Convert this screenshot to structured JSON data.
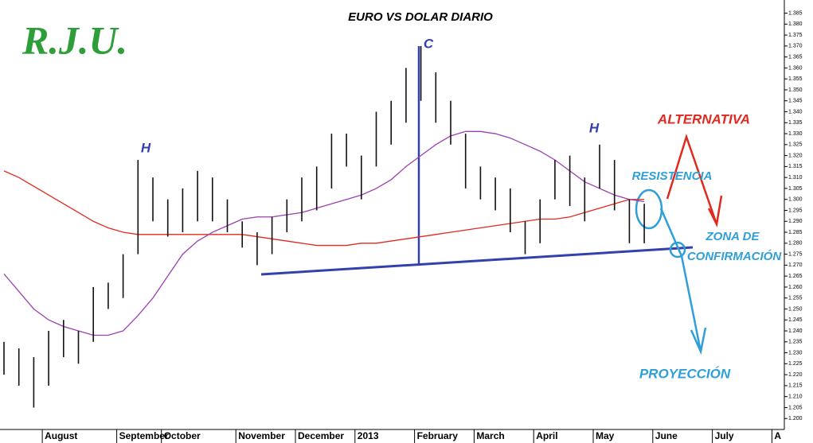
{
  "chart_data": {
    "type": "ohlc",
    "title": "EURO VS DOLAR DIARIO",
    "logo": "R.J.U.",
    "annotations": {
      "h_left": "H",
      "c": "C",
      "h_right": "H",
      "alternativa": "ALTERNATIVA",
      "resistencia": "RESISTENCIA",
      "zona_1": "ZONA DE",
      "zona_2": "CONFIRMACIÓN",
      "proyeccion": "PROYECCIÓN"
    },
    "categories": [
      null,
      null,
      null,
      "August",
      null,
      null,
      null,
      null,
      "September",
      null,
      null,
      "October",
      null,
      null,
      null,
      null,
      "November",
      null,
      null,
      null,
      "December",
      null,
      null,
      null,
      "2013",
      null,
      null,
      null,
      "February",
      null,
      null,
      null,
      "March",
      null,
      null,
      null,
      "April",
      null,
      null,
      null,
      "May",
      null,
      null,
      null,
      "June",
      null,
      null,
      null,
      "July",
      null,
      null,
      null,
      "A"
    ],
    "high": [
      1.235,
      1.232,
      1.228,
      1.24,
      1.245,
      1.24,
      1.26,
      1.262,
      1.275,
      1.318,
      1.31,
      1.3,
      1.305,
      1.313,
      1.31,
      1.3,
      1.29,
      1.285,
      1.292,
      1.3,
      1.31,
      1.315,
      1.33,
      1.33,
      1.32,
      1.34,
      1.345,
      1.36,
      1.37,
      1.358,
      1.345,
      1.33,
      1.315,
      1.31,
      1.305,
      1.29,
      1.3,
      1.318,
      1.32,
      1.31,
      1.325,
      1.318,
      1.3,
      1.298,
      null,
      null,
      null,
      null,
      null,
      null,
      null,
      null,
      null
    ],
    "low": [
      1.22,
      1.215,
      1.205,
      1.215,
      1.228,
      1.225,
      1.235,
      1.25,
      1.255,
      1.275,
      1.29,
      1.283,
      1.285,
      1.29,
      1.29,
      1.285,
      1.278,
      1.27,
      1.275,
      1.285,
      1.29,
      1.295,
      1.305,
      1.315,
      1.3,
      1.315,
      1.325,
      1.335,
      1.345,
      1.335,
      1.325,
      1.305,
      1.3,
      1.295,
      1.285,
      1.275,
      1.28,
      1.3,
      1.297,
      1.29,
      1.305,
      1.295,
      1.28,
      1.28,
      null,
      null,
      null,
      null,
      null,
      null,
      null,
      null,
      null
    ],
    "color": "#111111",
    "lines": [
      {
        "color": "#e02a1f",
        "values": [
          1.313,
          1.31,
          1.306,
          1.302,
          1.298,
          1.294,
          1.29,
          1.287,
          1.285,
          1.284,
          1.284,
          1.284,
          1.284,
          1.284,
          1.284,
          1.284,
          1.284,
          1.283,
          1.282,
          1.281,
          1.28,
          1.279,
          1.279,
          1.279,
          1.28,
          1.28,
          1.281,
          1.282,
          1.283,
          1.284,
          1.285,
          1.286,
          1.287,
          1.288,
          1.289,
          1.29,
          1.291,
          1.291,
          1.292,
          1.294,
          1.296,
          1.298,
          1.3,
          1.3,
          null,
          null,
          null,
          null,
          null,
          null,
          null,
          null,
          null
        ]
      },
      {
        "color": "#9b3fb0",
        "values": [
          1.266,
          1.258,
          1.25,
          1.245,
          1.242,
          1.24,
          1.238,
          1.238,
          1.24,
          1.247,
          1.255,
          1.265,
          1.275,
          1.281,
          1.285,
          1.288,
          1.291,
          1.292,
          1.292,
          1.293,
          1.294,
          1.296,
          1.298,
          1.3,
          1.302,
          1.305,
          1.309,
          1.315,
          1.32,
          1.325,
          1.329,
          1.331,
          1.331,
          1.33,
          1.328,
          1.325,
          1.322,
          1.318,
          1.313,
          1.308,
          1.305,
          1.302,
          1.3,
          1.299,
          null,
          null,
          null,
          null,
          null,
          null,
          null,
          null,
          null
        ]
      }
    ],
    "ylim": [
      1.195,
      1.391
    ],
    "yticks": [
      {
        "value": 1.2,
        "label": "1.200"
      },
      1.205,
      {
        "value": 1.21,
        "label": "1.210"
      },
      1.215,
      {
        "value": 1.22,
        "label": "1.220"
      },
      1.225,
      {
        "value": 1.23,
        "label": "1.230"
      },
      1.235,
      {
        "value": 1.24,
        "label": "1.240"
      },
      1.245,
      {
        "value": 1.25,
        "label": "1.250"
      },
      1.255,
      {
        "value": 1.26,
        "label": "1.260"
      },
      1.265,
      {
        "value": 1.27,
        "label": "1.270"
      },
      1.275,
      {
        "value": 1.28,
        "label": "1.280"
      },
      1.285,
      {
        "value": 1.29,
        "label": "1.290"
      },
      1.295,
      {
        "value": 1.3,
        "label": "1.300"
      },
      1.305,
      {
        "value": 1.31,
        "label": "1.310"
      },
      1.315,
      {
        "value": 1.32,
        "label": "1.320"
      },
      1.325,
      {
        "value": 1.33,
        "label": "1.330"
      },
      1.335,
      {
        "value": 1.34,
        "label": "1.340"
      },
      1.345,
      {
        "value": 1.35,
        "label": "1.350"
      },
      1.355,
      {
        "value": 1.36,
        "label": "1.360"
      },
      1.365,
      {
        "value": 1.37,
        "label": "1.370"
      },
      1.375,
      {
        "value": 1.38,
        "label": "1.380"
      },
      1.385
    ]
  }
}
